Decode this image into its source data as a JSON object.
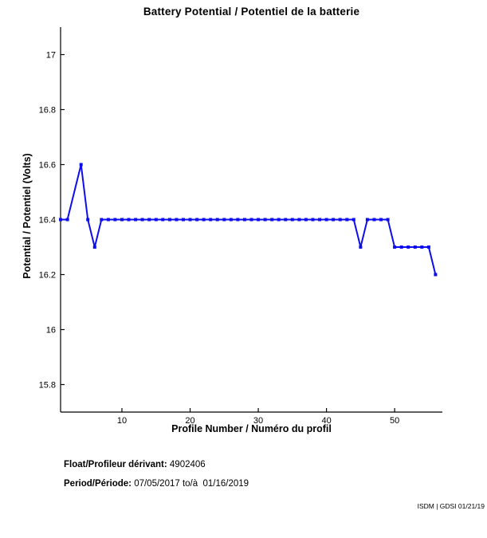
{
  "chart_data": {
    "type": "line",
    "title": "Battery Potential / Potentiel de la batterie",
    "xlabel": "Profile Number / Numéro du profil",
    "ylabel": "Potential / Potentiel (Volts)",
    "x": [
      1,
      2,
      4,
      5,
      6,
      7,
      8,
      9,
      10,
      11,
      12,
      13,
      14,
      15,
      16,
      17,
      18,
      19,
      20,
      21,
      22,
      23,
      24,
      25,
      26,
      27,
      28,
      29,
      30,
      31,
      32,
      33,
      34,
      35,
      36,
      37,
      38,
      39,
      40,
      41,
      42,
      43,
      44,
      45,
      46,
      47,
      48,
      49,
      50,
      51,
      52,
      53,
      54,
      55,
      56
    ],
    "y": [
      16.4,
      16.4,
      16.6,
      16.4,
      16.3,
      16.4,
      16.4,
      16.4,
      16.4,
      16.4,
      16.4,
      16.4,
      16.4,
      16.4,
      16.4,
      16.4,
      16.4,
      16.4,
      16.4,
      16.4,
      16.4,
      16.4,
      16.4,
      16.4,
      16.4,
      16.4,
      16.4,
      16.4,
      16.4,
      16.4,
      16.4,
      16.4,
      16.4,
      16.4,
      16.4,
      16.4,
      16.4,
      16.4,
      16.4,
      16.4,
      16.4,
      16.4,
      16.4,
      16.3,
      16.4,
      16.4,
      16.4,
      16.4,
      16.3,
      16.3,
      16.3,
      16.3,
      16.3,
      16.3,
      16.2
    ],
    "xlim": [
      1,
      57
    ],
    "ylim": [
      15.7,
      17.1
    ],
    "xticks": [
      10,
      20,
      30,
      40,
      50
    ],
    "xtick_labels": [
      "10",
      "20",
      "30",
      "40",
      "50"
    ],
    "yticks": [
      15.8,
      16.0,
      16.2,
      16.4,
      16.6,
      16.8,
      17.0
    ],
    "ytick_labels": [
      "15.8",
      "16",
      "16.2",
      "16.4",
      "16.6",
      "16.8",
      "17"
    ],
    "grid": false,
    "legend": null,
    "line_color": "#0d0dee",
    "axis_color": "#000000",
    "marker": "square"
  },
  "footer": {
    "float_label": "Float/Profileur dérivant:",
    "float_value": " 4902406",
    "period_label": "Period/Période:",
    "period_value": " 07/05/2017 to/à  01/16/2019"
  },
  "watermark": "ISDM | GDSI 01/21/19"
}
